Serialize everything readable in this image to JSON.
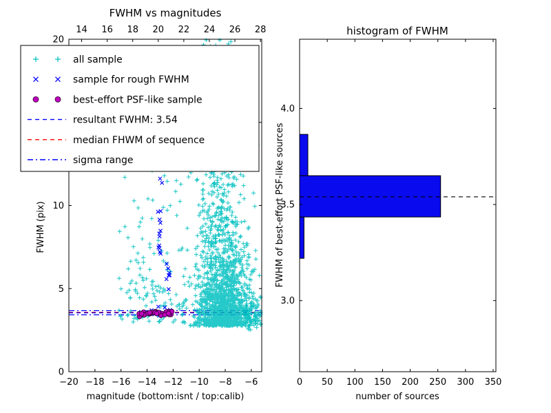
{
  "figure": {
    "background": "#ffffff"
  },
  "chart_data": [
    {
      "type": "scatter",
      "title": "FWHM vs magnitudes",
      "xlabel": "magnitude (bottom:isnt / top:calib)",
      "ylabel": "FWHM (pix)",
      "xlim": [
        -20,
        -5.2
      ],
      "xlim_top": [
        13.0,
        28.1
      ],
      "ylim": [
        0,
        20
      ],
      "xticks_bottom": [
        -20,
        -18,
        -16,
        -14,
        -12,
        -10,
        -8,
        -6
      ],
      "xticks_top": [
        14,
        16,
        18,
        20,
        22,
        24,
        26,
        28
      ],
      "yticks": [
        0,
        5,
        10,
        15,
        20
      ],
      "legend": [
        {
          "label": "all sample",
          "marker": "plus",
          "color": "#00bfbf"
        },
        {
          "label": "sample for rough FWHM",
          "marker": "x",
          "color": "#0000ff"
        },
        {
          "label": "best-effort PSF-like sample",
          "marker": "circle",
          "color": "#bf00bf",
          "edge": "#2a002a"
        },
        {
          "label": "resultant FWHM: 3.54",
          "marker": "dashed-line",
          "color": "#0000ff"
        },
        {
          "label": "median FHWM of sequence",
          "marker": "dashed-line",
          "color": "#ff0000"
        },
        {
          "label": "sigma range",
          "marker": "dashdot-line",
          "color": "#0000ff"
        }
      ],
      "hlines": [
        {
          "name": "sigma-low",
          "y": 3.42,
          "style": "dashdot",
          "color": "#0000ff"
        },
        {
          "name": "sigma-high",
          "y": 3.67,
          "style": "dashdot",
          "color": "#0000ff"
        },
        {
          "name": "median-fwhm",
          "y": 3.57,
          "style": "dashed",
          "color": "#ff0000"
        },
        {
          "name": "resultant-fwhm",
          "y": 3.54,
          "style": "dashed",
          "color": "#0000ff"
        }
      ],
      "clusters": [
        {
          "name": "all-sample-main",
          "marker": "plus",
          "color": "#00bfbf",
          "opacity": 0.85,
          "n": 1500,
          "x": {
            "dist": "normal",
            "mu": -8.15,
            "sd": 1.05,
            "min": -11.6,
            "max": -5.25
          },
          "y": {
            "dist": "exp",
            "base": 2.75,
            "scale": 2.2,
            "max": 20
          }
        },
        {
          "name": "all-sample-upper-column",
          "marker": "plus",
          "color": "#00bfbf",
          "opacity": 0.85,
          "n": 240,
          "x": {
            "dist": "normal",
            "mu": -8.55,
            "sd": 0.8,
            "min": -10.9,
            "max": -6.9
          },
          "y": {
            "dist": "uniform",
            "min": 7.5,
            "max": 20
          }
        },
        {
          "name": "all-sample-left-sparse",
          "marker": "plus",
          "color": "#00bfbf",
          "opacity": 0.85,
          "n": 160,
          "x": {
            "dist": "uniform",
            "min": -16.2,
            "max": -10.9
          },
          "y": {
            "dist": "exp",
            "base": 2.95,
            "scale": 3.4,
            "max": 19.8
          }
        },
        {
          "name": "all-sample-right-bottom",
          "marker": "plus",
          "color": "#00bfbf",
          "opacity": 0.85,
          "n": 90,
          "x": {
            "dist": "uniform",
            "min": -6.6,
            "max": -5.25
          },
          "y": {
            "dist": "normal",
            "mu": 3.6,
            "sd": 0.55,
            "min": 2.45,
            "max": 5.6
          }
        },
        {
          "name": "rough-fwhm-on-line",
          "marker": "x",
          "color": "#0000ff",
          "opacity": 1,
          "n": 12,
          "x": {
            "dist": "uniform",
            "min": -14.6,
            "max": -11.9
          },
          "y": {
            "dist": "normal",
            "mu": 3.62,
            "sd": 0.13,
            "min": 3.3,
            "max": 4.0
          }
        },
        {
          "name": "rough-fwhm-column-1",
          "marker": "x",
          "color": "#0000ff",
          "opacity": 1,
          "n": 12,
          "x": {
            "dist": "normal",
            "mu": -13.05,
            "sd": 0.08,
            "min": -13.35,
            "max": -12.75
          },
          "y": {
            "dist": "uniform",
            "min": 6.7,
            "max": 9.7
          }
        },
        {
          "name": "rough-fwhm-column-2",
          "marker": "x",
          "color": "#0000ff",
          "opacity": 1,
          "n": 7,
          "x": {
            "dist": "normal",
            "mu": -12.35,
            "sd": 0.08,
            "min": -12.65,
            "max": -12.05
          },
          "y": {
            "dist": "uniform",
            "min": 4.8,
            "max": 6.6
          }
        },
        {
          "name": "rough-fwhm-high",
          "marker": "x",
          "color": "#0000ff",
          "opacity": 1,
          "n": 4,
          "x": {
            "dist": "normal",
            "mu": -12.95,
            "sd": 0.15,
            "min": -13.35,
            "max": -12.55
          },
          "y": {
            "dist": "uniform",
            "min": 11.0,
            "max": 12.6
          }
        },
        {
          "name": "psf-like-sample",
          "marker": "circle",
          "color": "#bf00bf",
          "edge": "#2a002a",
          "opacity": 1,
          "n": 30,
          "x": {
            "dist": "uniform",
            "min": -14.68,
            "max": -11.88
          },
          "y": {
            "dist": "normal",
            "mu": 3.52,
            "sd": 0.07,
            "min": 3.32,
            "max": 3.74
          }
        }
      ]
    },
    {
      "type": "histogram-horizontal",
      "title": "histogram of FWHM",
      "xlabel": "number of sources",
      "ylabel": "FWHM of best-effort PSF-like sources",
      "xlim": [
        0,
        355
      ],
      "ylim": [
        2.63,
        4.36
      ],
      "xticks": [
        0,
        50,
        100,
        150,
        200,
        250,
        300,
        350
      ],
      "yticks": [
        {
          "v": 3.0,
          "label": "3.0"
        },
        {
          "v": 3.5,
          "label": "3.5"
        },
        {
          "v": 4.0,
          "label": "4.0"
        }
      ],
      "bar_color": "#0a0aee",
      "bins": [
        {
          "from": 3.22,
          "to": 3.435,
          "count": 8
        },
        {
          "from": 3.435,
          "to": 3.65,
          "count": 255
        },
        {
          "from": 3.65,
          "to": 3.865,
          "count": 15
        }
      ],
      "median_line": {
        "y": 3.54,
        "style": "dashed",
        "color": "#000000"
      }
    }
  ]
}
